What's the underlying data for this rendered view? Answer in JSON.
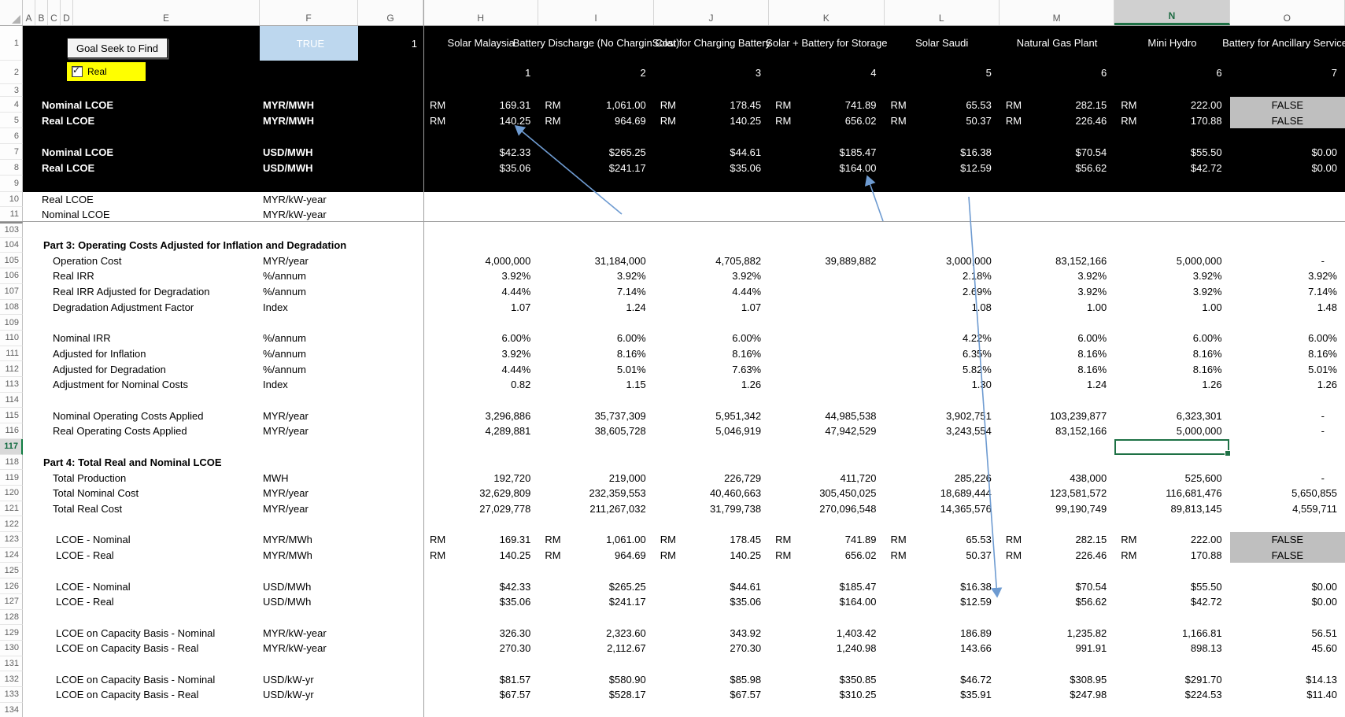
{
  "controls": {
    "goal_seek_button": "Goal Seek to Find",
    "flag_cell": "TRUE",
    "g1": "1",
    "checkbox_label": "Real",
    "checkbox_checked": true
  },
  "column_letters": [
    "A",
    "B",
    "C",
    "D",
    "E",
    "F",
    "G",
    "H",
    "I",
    "J",
    "K",
    "L",
    "M",
    "N",
    "O"
  ],
  "selected_column": "N",
  "selected_row": "117",
  "selected_cell": "N117",
  "series_headers": [
    {
      "title": "Solar Malaysia",
      "index": "1"
    },
    {
      "title": "Battery Discharge (No Chargin Cost)",
      "index": "2"
    },
    {
      "title": "Solar for Charging Battery",
      "index": "3"
    },
    {
      "title": "Solar + Battery for Storage",
      "index": "4"
    },
    {
      "title": "Solar Saudi",
      "index": "5"
    },
    {
      "title": "Natural Gas Plant",
      "index": "6"
    },
    {
      "title": "Mini Hydro",
      "index": "6"
    },
    {
      "title": "Battery for Ancillary Services",
      "index": "7"
    }
  ],
  "colors": {
    "accent_green": "#107C41",
    "true_fill": "#BDD7EE",
    "checkbox_fill": "#FFFF00",
    "false_fill": "#BFBFBF",
    "arrow_blue": "#6E9BD1",
    "header_band": "#000000"
  },
  "rows": [
    {
      "num": "1",
      "kind": "titles"
    },
    {
      "num": "2",
      "kind": "indexes"
    },
    {
      "num": "3"
    },
    {
      "num": "4",
      "label": "Nominal LCOE",
      "bold": true,
      "indent": 1,
      "unit": "MYR/MWH",
      "fmt": "rm",
      "cells": [
        "169.31",
        "1,061.00",
        "178.45",
        "741.89",
        "65.53",
        "282.15",
        "222.00",
        "FALSE"
      ]
    },
    {
      "num": "5",
      "label": "Real LCOE",
      "bold": true,
      "indent": 1,
      "unit": "MYR/MWH",
      "fmt": "rm",
      "cells": [
        "140.25",
        "964.69",
        "140.25",
        "656.02",
        "50.37",
        "226.46",
        "170.88",
        "FALSE"
      ]
    },
    {
      "num": "6"
    },
    {
      "num": "7",
      "label": "Nominal LCOE",
      "bold": true,
      "indent": 1,
      "unit": "USD/MWH",
      "fmt": "plain",
      "cells": [
        "$42.33",
        "$265.25",
        "$44.61",
        "$185.47",
        "$16.38",
        "$70.54",
        "$55.50",
        "$0.00"
      ]
    },
    {
      "num": "8",
      "label": "Real LCOE",
      "bold": true,
      "indent": 1,
      "unit": "USD/MWH",
      "fmt": "plain",
      "cells": [
        "$35.06",
        "$241.17",
        "$35.06",
        "$164.00",
        "$12.59",
        "$56.62",
        "$42.72",
        "$0.00"
      ]
    },
    {
      "num": "9"
    },
    {
      "num": "10",
      "label": "Real LCOE",
      "indent": 1,
      "unit": "MYR/kW-year"
    },
    {
      "num": "11",
      "label": "Nominal LCOE",
      "indent": 1,
      "unit": "MYR/kW-year"
    },
    {
      "num": "103"
    },
    {
      "num": "104",
      "label": "Part 3: Operating Costs Adjusted for Inflation and Degradation",
      "bold": true,
      "indent": 0
    },
    {
      "num": "105",
      "label": "Operation Cost",
      "indent": 2,
      "unit": "MYR/year",
      "fmt": "plain",
      "cells": [
        "4,000,000",
        "31,184,000",
        "4,705,882",
        "39,889,882",
        "3,000,000",
        "83,152,166",
        "5,000,000",
        "-"
      ]
    },
    {
      "num": "106",
      "label": "Real IRR",
      "indent": 2,
      "unit": "%/annum",
      "fmt": "plain",
      "cells": [
        "3.92%",
        "3.92%",
        "3.92%",
        "",
        "2.18%",
        "3.92%",
        "3.92%",
        "3.92%"
      ]
    },
    {
      "num": "107",
      "label": "Real IRR Adjusted for Degradation",
      "indent": 2,
      "unit": "%/annum",
      "fmt": "plain",
      "cells": [
        "4.44%",
        "7.14%",
        "4.44%",
        "",
        "2.69%",
        "3.92%",
        "3.92%",
        "7.14%"
      ]
    },
    {
      "num": "108",
      "label": "Degradation Adjustment Factor",
      "indent": 2,
      "unit": "Index",
      "fmt": "plain",
      "cells": [
        "1.07",
        "1.24",
        "1.07",
        "",
        "1.08",
        "1.00",
        "1.00",
        "1.48"
      ]
    },
    {
      "num": "109"
    },
    {
      "num": "110",
      "label": "Nominal IRR",
      "indent": 2,
      "unit": "%/annum",
      "fmt": "plain",
      "cells": [
        "6.00%",
        "6.00%",
        "6.00%",
        "",
        "4.22%",
        "6.00%",
        "6.00%",
        "6.00%"
      ]
    },
    {
      "num": "111",
      "label": "Adjusted for Inflation",
      "indent": 2,
      "unit": "%/annum",
      "fmt": "plain",
      "cells": [
        "3.92%",
        "8.16%",
        "8.16%",
        "",
        "6.35%",
        "8.16%",
        "8.16%",
        "8.16%"
      ]
    },
    {
      "num": "112",
      "label": "Adjusted for Degradation",
      "indent": 2,
      "unit": "%/annum",
      "fmt": "plain",
      "cells": [
        "4.44%",
        "5.01%",
        "7.63%",
        "",
        "5.82%",
        "8.16%",
        "8.16%",
        "5.01%"
      ]
    },
    {
      "num": "113",
      "label": "Adjustment for Nominal Costs",
      "indent": 2,
      "unit": "Index",
      "fmt": "plain",
      "cells": [
        "0.82",
        "1.15",
        "1.26",
        "",
        "1.30",
        "1.24",
        "1.26",
        "1.26"
      ]
    },
    {
      "num": "114"
    },
    {
      "num": "115",
      "label": "Nominal Operating Costs Applied",
      "indent": 2,
      "unit": "MYR/year",
      "fmt": "plain",
      "cells": [
        "3,296,886",
        "35,737,309",
        "5,951,342",
        "44,985,538",
        "3,902,751",
        "103,239,877",
        "6,323,301",
        "-"
      ]
    },
    {
      "num": "116",
      "label": "Real Operating Costs Applied",
      "indent": 2,
      "unit": "MYR/year",
      "fmt": "plain",
      "cells": [
        "4,289,881",
        "38,605,728",
        "5,046,919",
        "47,942,529",
        "3,243,554",
        "83,152,166",
        "5,000,000",
        "-"
      ]
    },
    {
      "num": "117"
    },
    {
      "num": "118",
      "label": "Part 4: Total Real and Nominal LCOE",
      "bold": true,
      "indent": 0
    },
    {
      "num": "119",
      "label": "Total Production",
      "indent": 2,
      "unit": "MWH",
      "fmt": "plain",
      "cells": [
        "192,720",
        "219,000",
        "226,729",
        "411,720",
        "285,226",
        "438,000",
        "525,600",
        "-"
      ]
    },
    {
      "num": "120",
      "label": "Total Nominal Cost",
      "indent": 2,
      "unit": "MYR/year",
      "fmt": "plain",
      "cells": [
        "32,629,809",
        "232,359,553",
        "40,460,663",
        "305,450,025",
        "18,689,444",
        "123,581,572",
        "116,681,476",
        "5,650,855"
      ]
    },
    {
      "num": "121",
      "label": "Total Real Cost",
      "indent": 2,
      "unit": "MYR/year",
      "fmt": "plain",
      "cells": [
        "27,029,778",
        "211,267,032",
        "31,799,738",
        "270,096,548",
        "14,365,576",
        "99,190,749",
        "89,813,145",
        "4,559,711"
      ]
    },
    {
      "num": "122"
    },
    {
      "num": "123",
      "label": "LCOE - Nominal",
      "indent": 3,
      "unit": "MYR/MWh",
      "fmt": "rm",
      "cells": [
        "169.31",
        "1,061.00",
        "178.45",
        "741.89",
        "65.53",
        "282.15",
        "222.00",
        "FALSE"
      ]
    },
    {
      "num": "124",
      "label": "LCOE - Real",
      "indent": 3,
      "unit": "MYR/MWh",
      "fmt": "rm",
      "cells": [
        "140.25",
        "964.69",
        "140.25",
        "656.02",
        "50.37",
        "226.46",
        "170.88",
        "FALSE"
      ]
    },
    {
      "num": "125"
    },
    {
      "num": "126",
      "label": "LCOE - Nominal",
      "indent": 3,
      "unit": "USD/MWh",
      "fmt": "plain",
      "cells": [
        "$42.33",
        "$265.25",
        "$44.61",
        "$185.47",
        "$16.38",
        "$70.54",
        "$55.50",
        "$0.00"
      ]
    },
    {
      "num": "127",
      "label": "LCOE - Real",
      "indent": 3,
      "unit": "USD/MWh",
      "fmt": "plain",
      "cells": [
        "$35.06",
        "$241.17",
        "$35.06",
        "$164.00",
        "$12.59",
        "$56.62",
        "$42.72",
        "$0.00"
      ]
    },
    {
      "num": "128"
    },
    {
      "num": "129",
      "label": "LCOE on Capacity Basis - Nominal",
      "indent": 3,
      "unit": "MYR/kW-year",
      "fmt": "plain",
      "cells": [
        "326.30",
        "2,323.60",
        "343.92",
        "1,403.42",
        "186.89",
        "1,235.82",
        "1,166.81",
        "56.51"
      ]
    },
    {
      "num": "130",
      "label": "LCOE on Capacity Basis - Real",
      "indent": 3,
      "unit": "MYR/kW-year",
      "fmt": "plain",
      "cells": [
        "270.30",
        "2,112.67",
        "270.30",
        "1,240.98",
        "143.66",
        "991.91",
        "898.13",
        "45.60"
      ]
    },
    {
      "num": "131"
    },
    {
      "num": "132",
      "label": "LCOE on Capacity Basis - Nominal",
      "indent": 3,
      "unit": "USD/kW-yr",
      "fmt": "plain",
      "cells": [
        "$81.57",
        "$580.90",
        "$85.98",
        "$350.85",
        "$46.72",
        "$308.95",
        "$291.70",
        "$14.13"
      ]
    },
    {
      "num": "133",
      "label": "LCOE on Capacity Basis - Real",
      "indent": 3,
      "unit": "USD/kW-yr",
      "fmt": "plain",
      "cells": [
        "$67.57",
        "$528.17",
        "$67.57",
        "$310.25",
        "$35.91",
        "$247.98",
        "$224.53",
        "$11.40"
      ]
    },
    {
      "num": "134"
    }
  ],
  "annotations": {
    "currency_prefix": "RM",
    "false_label": "FALSE",
    "arrow_count": 3
  }
}
